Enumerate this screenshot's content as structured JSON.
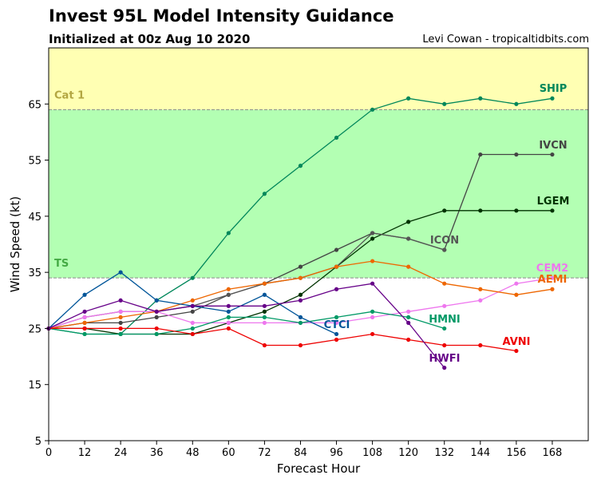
{
  "header": {
    "title": "Invest 95L Model Intensity Guidance",
    "subtitle": "Initialized at 00z Aug 10 2020",
    "credit": "Levi Cowan - tropicaltidbits.com"
  },
  "chart_data": {
    "type": "line",
    "xlabel": "Forecast Hour",
    "ylabel": "Wind Speed (kt)",
    "xlim": [
      0,
      180
    ],
    "ylim": [
      5,
      75
    ],
    "xticks": [
      0,
      12,
      24,
      36,
      48,
      60,
      72,
      84,
      96,
      108,
      120,
      132,
      144,
      156,
      168
    ],
    "yticks": [
      5,
      15,
      25,
      35,
      45,
      55,
      65
    ],
    "bands": [
      {
        "label": "TS",
        "from": 34,
        "to": 64,
        "color": "#b3ffb3",
        "label_color": "#44aa44"
      },
      {
        "label": "Cat 1",
        "from": 64,
        "to": 75,
        "color": "#ffffb3",
        "label_color": "#b3a642"
      }
    ],
    "series": [
      {
        "name": "SHIP",
        "color": "#00875a",
        "x": [
          0,
          12,
          24,
          36,
          48,
          60,
          72,
          84,
          96,
          108,
          120,
          132,
          144,
          156,
          168
        ],
        "y": [
          25,
          24,
          24,
          30,
          34,
          42,
          49,
          54,
          59,
          64,
          66,
          65,
          66,
          65,
          66
        ]
      },
      {
        "name": "IVCN",
        "color": "#444444",
        "x": [
          0,
          12,
          24,
          36,
          48,
          60,
          72,
          84,
          96,
          108,
          120,
          132,
          144,
          156,
          168
        ],
        "y": [
          25,
          26,
          26,
          27,
          28,
          31,
          33,
          36,
          39,
          42,
          41,
          39,
          56,
          56,
          56
        ]
      },
      {
        "name": "LGEM",
        "color": "#003300",
        "x": [
          0,
          12,
          24,
          36,
          48,
          60,
          72,
          84,
          96,
          108,
          120,
          132,
          144,
          156,
          168
        ],
        "y": [
          25,
          25,
          24,
          24,
          24,
          26,
          28,
          31,
          36,
          41,
          44,
          46,
          46,
          46,
          46
        ]
      },
      {
        "name": "ICON",
        "color": "#555555",
        "x": [
          0,
          12,
          24,
          36,
          48,
          60,
          72,
          84,
          96,
          108,
          120,
          132
        ],
        "y": [
          25,
          27,
          28,
          28,
          29,
          31,
          33,
          34,
          36,
          42,
          41,
          39
        ]
      },
      {
        "name": "CEM2",
        "color": "#ee77ee",
        "x": [
          0,
          12,
          24,
          36,
          48,
          60,
          72,
          84,
          96,
          108,
          120,
          132,
          144,
          156,
          168
        ],
        "y": [
          25,
          27,
          28,
          28,
          26,
          26,
          26,
          26,
          26,
          27,
          28,
          29,
          30,
          33,
          34
        ]
      },
      {
        "name": "AEMI",
        "color": "#ee6600",
        "x": [
          0,
          12,
          24,
          36,
          48,
          60,
          72,
          84,
          96,
          108,
          120,
          132,
          144,
          156,
          168
        ],
        "y": [
          25,
          26,
          27,
          28,
          30,
          32,
          33,
          34,
          36,
          37,
          36,
          33,
          32,
          31,
          32
        ]
      },
      {
        "name": "HMNI",
        "color": "#009966",
        "x": [
          0,
          12,
          24,
          36,
          48,
          60,
          72,
          84,
          96,
          108,
          120,
          132
        ],
        "y": [
          25,
          24,
          24,
          24,
          25,
          27,
          27,
          26,
          27,
          28,
          27,
          25
        ]
      },
      {
        "name": "CTCI",
        "color": "#005599",
        "x": [
          0,
          12,
          24,
          36,
          48,
          60,
          72,
          84,
          96
        ],
        "y": [
          25,
          31,
          35,
          30,
          29,
          28,
          31,
          27,
          24
        ]
      },
      {
        "name": "AVNI",
        "color": "#ee0000",
        "x": [
          0,
          12,
          24,
          36,
          48,
          60,
          72,
          84,
          96,
          108,
          120,
          132,
          144,
          156
        ],
        "y": [
          25,
          25,
          25,
          25,
          24,
          25,
          22,
          22,
          23,
          24,
          23,
          22,
          22,
          21
        ]
      },
      {
        "name": "HWFI",
        "color": "#660088",
        "x": [
          0,
          12,
          24,
          36,
          48,
          60,
          72,
          84,
          96,
          108,
          120,
          132
        ],
        "y": [
          25,
          28,
          30,
          28,
          29,
          29,
          29,
          30,
          32,
          33,
          26,
          18
        ]
      }
    ]
  }
}
